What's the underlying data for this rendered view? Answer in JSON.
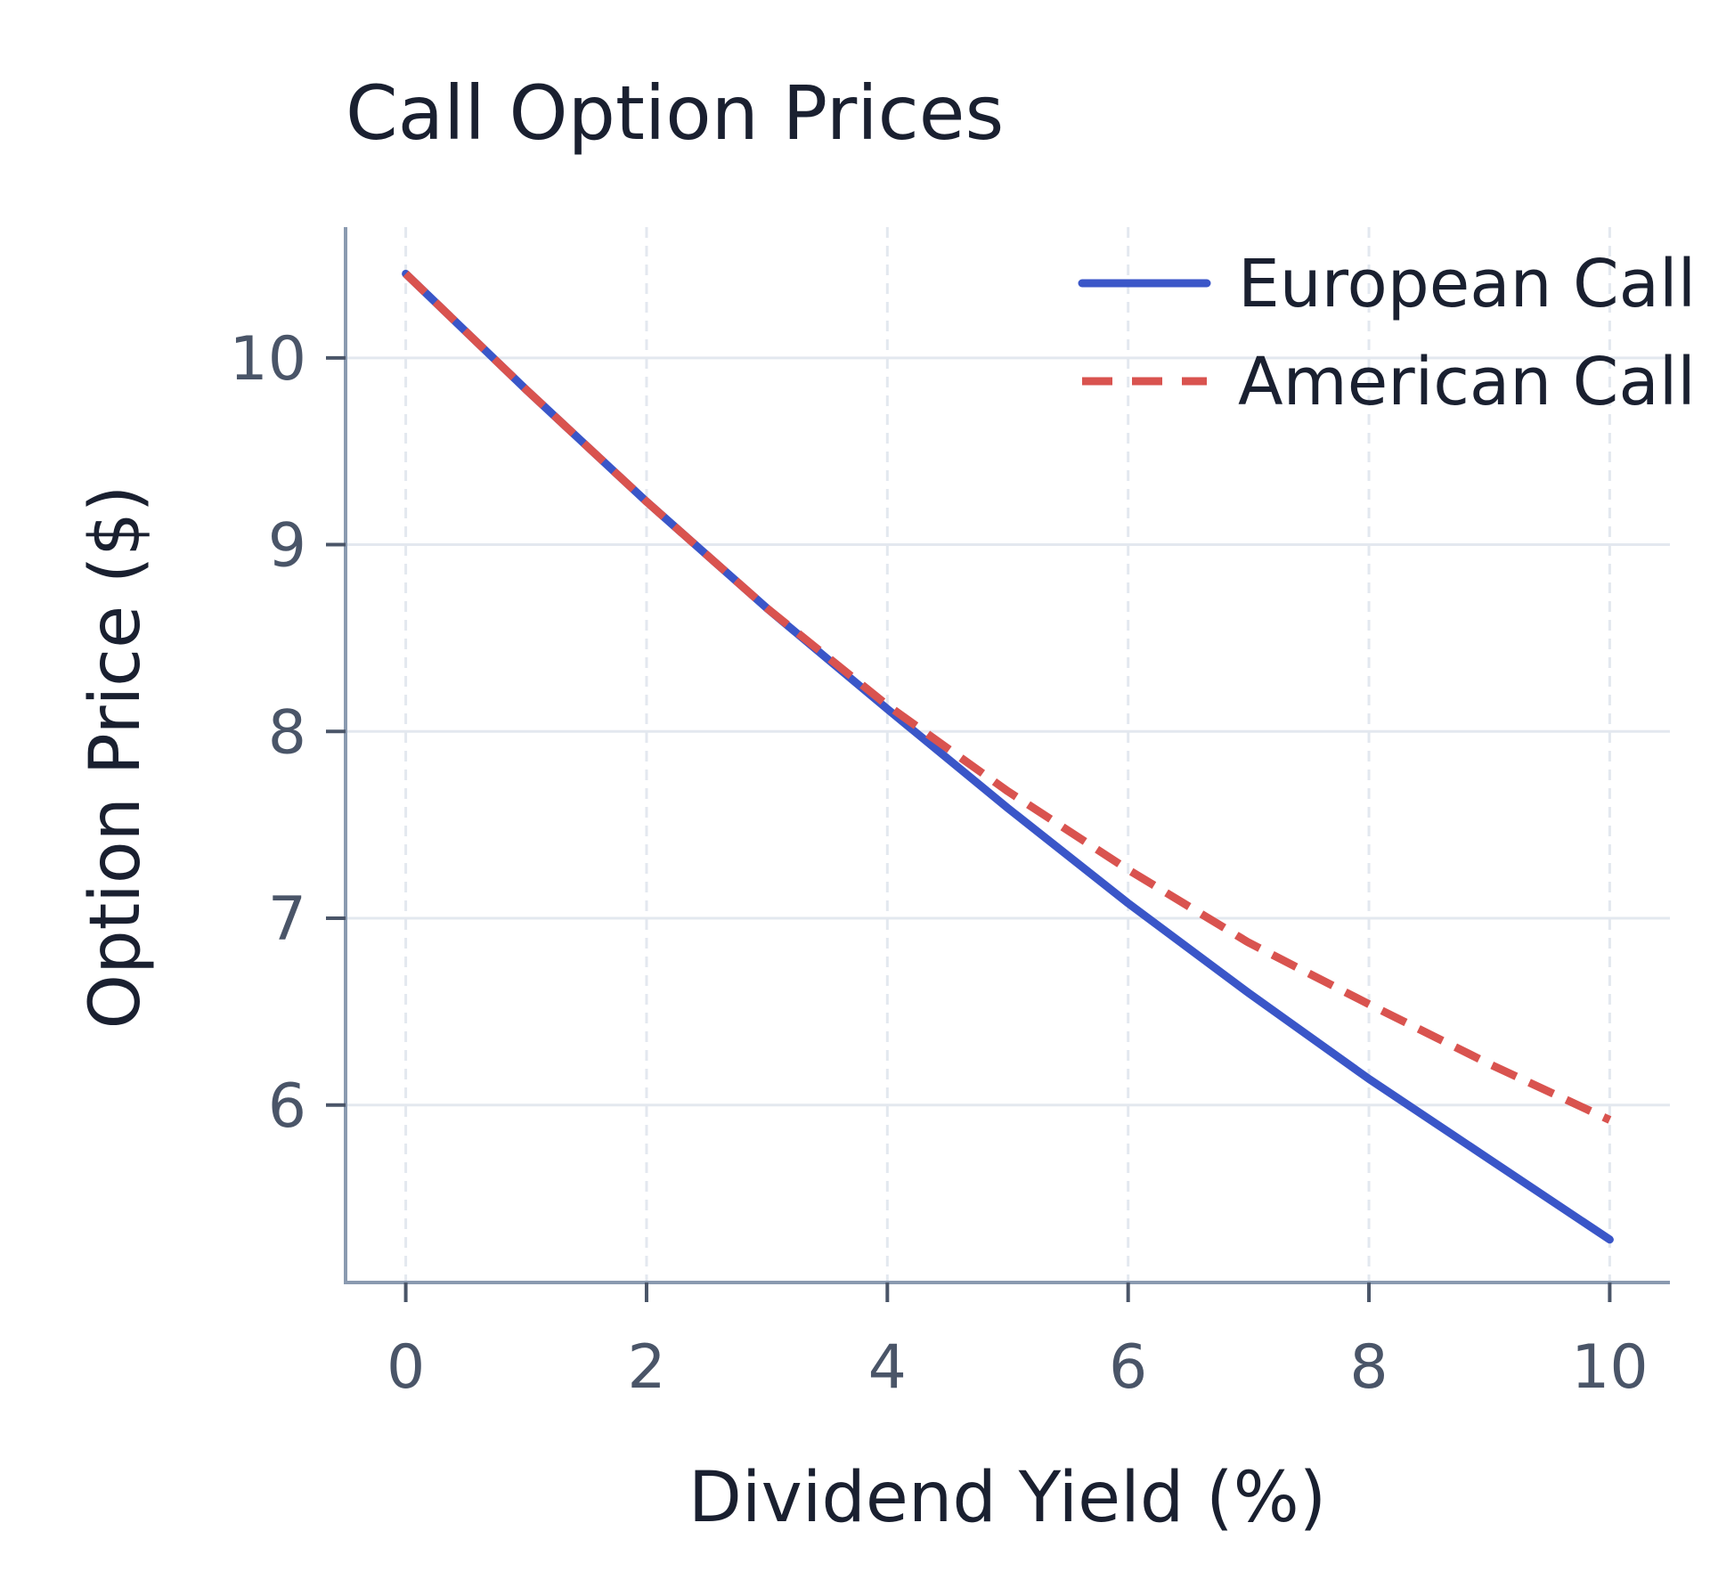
{
  "chart_data": {
    "type": "line",
    "title": "Call Option Prices",
    "xlabel": "Dividend Yield (%)",
    "ylabel": "Option Price ($)",
    "xlim": [
      -0.5,
      10.5
    ],
    "ylim": [
      5.05,
      10.7
    ],
    "xticks": [
      0,
      2,
      4,
      6,
      8,
      10
    ],
    "yticks": [
      6,
      7,
      8,
      9,
      10
    ],
    "grid": true,
    "legend_position": "top-right",
    "series": [
      {
        "name": "European Call",
        "color": "#3a56c8",
        "style": "solid",
        "x": [
          0,
          1,
          2,
          3,
          4,
          5,
          6,
          7,
          8,
          9,
          10
        ],
        "y": [
          10.45,
          9.83,
          9.23,
          8.66,
          8.12,
          7.59,
          7.08,
          6.6,
          6.14,
          5.71,
          5.28
        ]
      },
      {
        "name": "American Call",
        "color": "#d9534f",
        "style": "dashed",
        "x": [
          0,
          1,
          2,
          3,
          4,
          5,
          6,
          7,
          8,
          9,
          10
        ],
        "y": [
          10.45,
          9.83,
          9.23,
          8.66,
          8.14,
          7.68,
          7.26,
          6.87,
          6.54,
          6.22,
          5.92
        ]
      }
    ]
  }
}
